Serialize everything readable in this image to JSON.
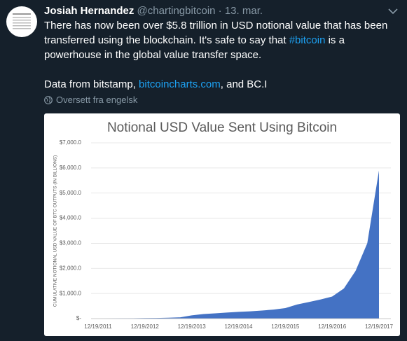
{
  "tweet": {
    "author": "Josiah Hernandez",
    "handle": "@chartingbitcoin",
    "separator": "·",
    "date": "13. mar.",
    "paragraphs": [
      [
        {
          "text": "There has now been over $5.8 trillion in USD notional value that has been transferred using the blockchain. It's safe to say that "
        },
        {
          "text": "#bitcoin",
          "link": true
        },
        {
          "text": " is a powerhouse in the global value transfer space."
        }
      ],
      [
        {
          "text": "Data from bitstamp, "
        },
        {
          "text": "bitcoincharts.com",
          "link": true
        },
        {
          "text": ", and BC.I"
        }
      ]
    ],
    "translate": "Oversett fra engelsk"
  },
  "chart_data": {
    "type": "area",
    "title": "Notional USD Value Sent Using Bitcoin",
    "y_label": "CUMULATIVE NOTIONAL USD VALUE OF BTC OUTPUTS (IN BILLIONS)",
    "categories": [
      "12/19/2011",
      null,
      null,
      null,
      "12/19/2012",
      null,
      null,
      null,
      "12/19/2013",
      null,
      null,
      null,
      "12/19/2014",
      null,
      null,
      null,
      "12/19/2015",
      null,
      null,
      null,
      "12/19/2016",
      null,
      null,
      null,
      "12/19/2017"
    ],
    "values": [
      0,
      5,
      10,
      15,
      20,
      25,
      35,
      50,
      130,
      180,
      210,
      240,
      270,
      290,
      320,
      360,
      420,
      560,
      660,
      760,
      880,
      1200,
      1900,
      3000,
      5900
    ],
    "color": "#4472c4",
    "ylim": [
      0,
      7000
    ],
    "yticks": [
      {
        "value": 0,
        "label": "$-"
      },
      {
        "value": 1000,
        "label": "$1,000.0"
      },
      {
        "value": 2000,
        "label": "$2,000.0"
      },
      {
        "value": 3000,
        "label": "$3,000.0"
      },
      {
        "value": 4000,
        "label": "$4,000.0"
      },
      {
        "value": 5000,
        "label": "$5,000.0"
      },
      {
        "value": 6000,
        "label": "$6,000.0"
      },
      {
        "value": 7000,
        "label": "$7,000.0"
      }
    ],
    "grid": true
  }
}
